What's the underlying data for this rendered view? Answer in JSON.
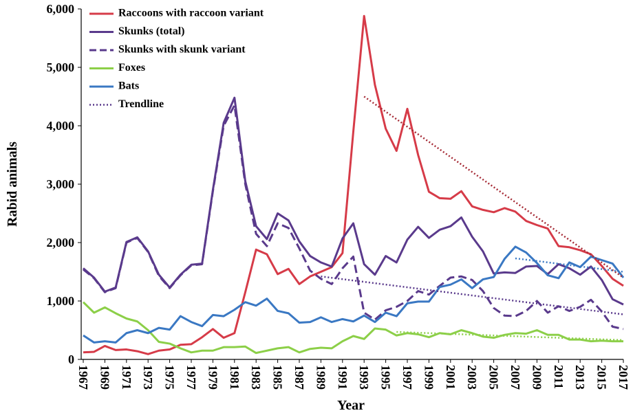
{
  "chart_data": {
    "type": "line",
    "x_label": "Year",
    "y_label": "Rabid animals",
    "x": [
      1967,
      1968,
      1969,
      1970,
      1971,
      1972,
      1973,
      1974,
      1975,
      1976,
      1977,
      1978,
      1979,
      1980,
      1981,
      1982,
      1983,
      1984,
      1985,
      1986,
      1987,
      1988,
      1989,
      1990,
      1991,
      1992,
      1993,
      1994,
      1995,
      1996,
      1997,
      1998,
      1999,
      2000,
      2001,
      2002,
      2003,
      2004,
      2005,
      2006,
      2007,
      2008,
      2009,
      2010,
      2011,
      2012,
      2013,
      2014,
      2015,
      2016,
      2017
    ],
    "xlim": [
      1967,
      2017
    ],
    "xticks": [
      1967,
      1969,
      1971,
      1973,
      1975,
      1977,
      1979,
      1981,
      1983,
      1985,
      1987,
      1989,
      1991,
      1993,
      1995,
      1997,
      1999,
      2001,
      2003,
      2005,
      2007,
      2009,
      2011,
      2013,
      2015,
      2017
    ],
    "ylim": [
      0,
      6000
    ],
    "yticks": [
      0,
      {
        "value": 1000,
        "label": "1,000"
      },
      {
        "value": 2000,
        "label": "2,000"
      },
      {
        "value": 3000,
        "label": "3,000"
      },
      {
        "value": 4000,
        "label": "4,000"
      },
      {
        "value": 5000,
        "label": "5,000"
      },
      {
        "value": 6000,
        "label": "6,000"
      }
    ],
    "grid": false,
    "series": [
      {
        "name": "Raccoons with raccoon variant",
        "color": "#d63b48",
        "style": "solid",
        "values": [
          120,
          130,
          230,
          160,
          170,
          140,
          90,
          150,
          170,
          250,
          260,
          380,
          520,
          370,
          450,
          1150,
          1880,
          1800,
          1460,
          1550,
          1290,
          1420,
          1500,
          1580,
          1820,
          3900,
          5880,
          4700,
          3950,
          3570,
          4290,
          3500,
          2870,
          2760,
          2750,
          2880,
          2620,
          2560,
          2520,
          2590,
          2530,
          2370,
          2300,
          2240,
          1940,
          1920,
          1870,
          1800,
          1600,
          1380,
          1260
        ]
      },
      {
        "name": "Skunks (total)",
        "color": "#5a3a8c",
        "style": "solid",
        "values": [
          1560,
          1400,
          1160,
          1230,
          2010,
          2090,
          1850,
          1450,
          1230,
          1450,
          1620,
          1640,
          2900,
          4050,
          4480,
          3050,
          2280,
          2060,
          2500,
          2380,
          2020,
          1770,
          1660,
          1590,
          2070,
          2330,
          1630,
          1450,
          1770,
          1660,
          2050,
          2270,
          2080,
          2220,
          2280,
          2430,
          2100,
          1850,
          1470,
          1490,
          1480,
          1590,
          1600,
          1460,
          1630,
          1560,
          1450,
          1590,
          1360,
          1030,
          940
        ]
      },
      {
        "name": "Skunks with skunk variant",
        "color": "#5a3a8c",
        "style": "dashed",
        "values": [
          1540,
          1390,
          1150,
          1220,
          2000,
          2080,
          1840,
          1430,
          1220,
          1440,
          1610,
          1630,
          2880,
          4000,
          4350,
          3000,
          2150,
          1940,
          2330,
          2250,
          1900,
          1520,
          1380,
          1290,
          1560,
          1760,
          800,
          680,
          840,
          900,
          1000,
          1170,
          1110,
          1260,
          1400,
          1420,
          1360,
          1170,
          880,
          750,
          740,
          830,
          1000,
          800,
          910,
          830,
          900,
          1020,
          820,
          560,
          520
        ]
      },
      {
        "name": "Foxes",
        "color": "#8ccf48",
        "style": "solid",
        "values": [
          980,
          800,
          890,
          790,
          700,
          650,
          500,
          300,
          270,
          190,
          120,
          150,
          150,
          210,
          210,
          220,
          110,
          150,
          190,
          210,
          120,
          180,
          200,
          190,
          310,
          400,
          350,
          530,
          510,
          410,
          450,
          430,
          380,
          450,
          430,
          500,
          450,
          390,
          370,
          420,
          450,
          440,
          500,
          420,
          420,
          340,
          340,
          310,
          320,
          310,
          310
        ]
      },
      {
        "name": "Bats",
        "color": "#3a78c3",
        "style": "solid",
        "values": [
          410,
          290,
          310,
          290,
          450,
          500,
          450,
          540,
          510,
          740,
          640,
          570,
          760,
          740,
          850,
          980,
          920,
          1040,
          830,
          790,
          630,
          640,
          720,
          640,
          690,
          650,
          750,
          640,
          800,
          740,
          960,
          990,
          990,
          1240,
          1280,
          1370,
          1220,
          1370,
          1410,
          1720,
          1930,
          1830,
          1650,
          1440,
          1390,
          1660,
          1580,
          1760,
          1700,
          1640,
          1400
        ]
      }
    ],
    "trendline_name": "Trendline",
    "trendline_color": "#5a3a8c",
    "trendlines": [
      {
        "color": "#a52a35",
        "x": [
          1993,
          2017
        ],
        "values": [
          4500,
          1400
        ]
      },
      {
        "color": "#5a3a8c",
        "x": [
          1989,
          2017
        ],
        "values": [
          1420,
          770
        ]
      },
      {
        "color": "#3a78c3",
        "x": [
          2007,
          2017
        ],
        "values": [
          1730,
          1500
        ]
      },
      {
        "color": "#8ccf48",
        "x": [
          1996,
          2017
        ],
        "values": [
          470,
          330
        ]
      }
    ]
  }
}
